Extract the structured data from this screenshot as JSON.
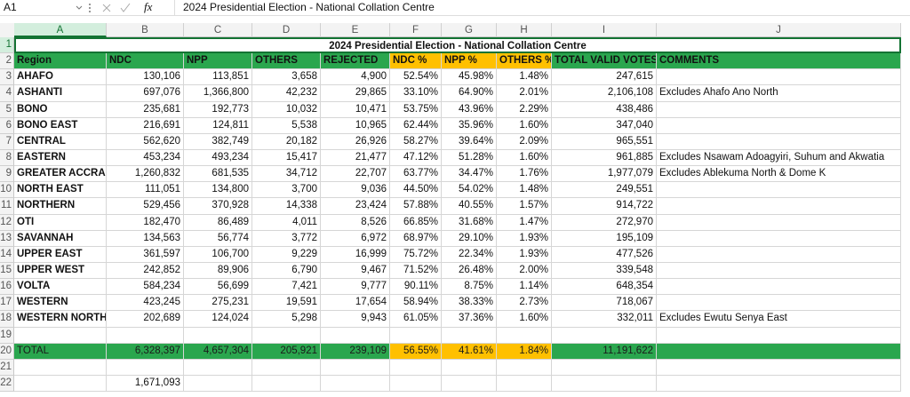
{
  "formula_bar": {
    "cell_ref": "A1",
    "function_label": "fx",
    "formula": "2024 Presidential Election - National Collation Centre"
  },
  "column_headers": [
    "A",
    "B",
    "C",
    "D",
    "E",
    "F",
    "G",
    "H",
    "I",
    "J"
  ],
  "rows": [
    {
      "number": "1",
      "cells": {
        "A": "2024 Presidential Election - National Collation Centre"
      }
    },
    {
      "number": "2",
      "cells": {
        "A": "Region",
        "B": "NDC",
        "C": "NPP",
        "D": "OTHERS",
        "E": "REJECTED",
        "F": "NDC %",
        "G": "NPP %",
        "H": "OTHERS %",
        "I": "TOTAL VALID VOTES",
        "J": "COMMENTS"
      }
    },
    {
      "number": "3",
      "cells": {
        "A": "AHAFO",
        "B": "130,106",
        "C": "113,851",
        "D": "3,658",
        "E": "4,900",
        "F": "52.54%",
        "G": "45.98%",
        "H": "1.48%",
        "I": "247,615"
      }
    },
    {
      "number": "4",
      "cells": {
        "A": "ASHANTI",
        "B": "697,076",
        "C": "1,366,800",
        "D": "42,232",
        "E": "29,865",
        "F": "33.10%",
        "G": "64.90%",
        "H": "2.01%",
        "I": "2,106,108",
        "J": "Excludes Ahafo Ano North"
      }
    },
    {
      "number": "5",
      "cells": {
        "A": "BONO",
        "B": "235,681",
        "C": "192,773",
        "D": "10,032",
        "E": "10,471",
        "F": "53.75%",
        "G": "43.96%",
        "H": "2.29%",
        "I": "438,486"
      }
    },
    {
      "number": "6",
      "cells": {
        "A": "BONO EAST",
        "B": "216,691",
        "C": "124,811",
        "D": "5,538",
        "E": "10,965",
        "F": "62.44%",
        "G": "35.96%",
        "H": "1.60%",
        "I": "347,040"
      }
    },
    {
      "number": "7",
      "cells": {
        "A": "CENTRAL",
        "B": "562,620",
        "C": "382,749",
        "D": "20,182",
        "E": "26,926",
        "F": "58.27%",
        "G": "39.64%",
        "H": "2.09%",
        "I": "965,551"
      }
    },
    {
      "number": "8",
      "cells": {
        "A": "EASTERN",
        "B": "453,234",
        "C": "493,234",
        "D": "15,417",
        "E": "21,477",
        "F": "47.12%",
        "G": "51.28%",
        "H": "1.60%",
        "I": "961,885",
        "J": "Excludes Nsawam Adoagyiri, Suhum and Akwatia"
      }
    },
    {
      "number": "9",
      "cells": {
        "A": "GREATER ACCRA",
        "B": "1,260,832",
        "C": "681,535",
        "D": "34,712",
        "E": "22,707",
        "F": "63.77%",
        "G": "34.47%",
        "H": "1.76%",
        "I": "1,977,079",
        "J": "Excludes Ablekuma North & Dome K"
      }
    },
    {
      "number": "10",
      "cells": {
        "A": "NORTH EAST",
        "B": "111,051",
        "C": "134,800",
        "D": "3,700",
        "E": "9,036",
        "F": "44.50%",
        "G": "54.02%",
        "H": "1.48%",
        "I": "249,551"
      }
    },
    {
      "number": "11",
      "cells": {
        "A": "NORTHERN",
        "B": "529,456",
        "C": "370,928",
        "D": "14,338",
        "E": "23,424",
        "F": "57.88%",
        "G": "40.55%",
        "H": "1.57%",
        "I": "914,722"
      }
    },
    {
      "number": "12",
      "cells": {
        "A": "OTI",
        "B": "182,470",
        "C": "86,489",
        "D": "4,011",
        "E": "8,526",
        "F": "66.85%",
        "G": "31.68%",
        "H": "1.47%",
        "I": "272,970"
      }
    },
    {
      "number": "13",
      "cells": {
        "A": "SAVANNAH",
        "B": "134,563",
        "C": "56,774",
        "D": "3,772",
        "E": "6,972",
        "F": "68.97%",
        "G": "29.10%",
        "H": "1.93%",
        "I": "195,109"
      }
    },
    {
      "number": "14",
      "cells": {
        "A": "UPPER EAST",
        "B": "361,597",
        "C": "106,700",
        "D": "9,229",
        "E": "16,999",
        "F": "75.72%",
        "G": "22.34%",
        "H": "1.93%",
        "I": "477,526"
      }
    },
    {
      "number": "15",
      "cells": {
        "A": "UPPER WEST",
        "B": "242,852",
        "C": "89,906",
        "D": "6,790",
        "E": "9,467",
        "F": "71.52%",
        "G": "26.48%",
        "H": "2.00%",
        "I": "339,548"
      }
    },
    {
      "number": "16",
      "cells": {
        "A": "VOLTA",
        "B": "584,234",
        "C": "56,699",
        "D": "7,421",
        "E": "9,777",
        "F": "90.11%",
        "G": "8.75%",
        "H": "1.14%",
        "I": "648,354"
      }
    },
    {
      "number": "17",
      "cells": {
        "A": "WESTERN",
        "B": "423,245",
        "C": "275,231",
        "D": "19,591",
        "E": "17,654",
        "F": "58.94%",
        "G": "38.33%",
        "H": "2.73%",
        "I": "718,067"
      }
    },
    {
      "number": "18",
      "cells": {
        "A": "WESTERN NORTH",
        "B": "202,689",
        "C": "124,024",
        "D": "5,298",
        "E": "9,943",
        "F": "61.05%",
        "G": "37.36%",
        "H": "1.60%",
        "I": "332,011",
        "J": "Excludes Ewutu Senya East"
      }
    },
    {
      "number": "19"
    },
    {
      "number": "20",
      "cells": {
        "A": "TOTAL",
        "B": "6,328,397",
        "C": "4,657,304",
        "D": "205,921",
        "E": "239,109",
        "F": "56.55%",
        "G": "41.61%",
        "H": "1.84%",
        "I": "11,191,622"
      }
    },
    {
      "number": "21"
    },
    {
      "number": "22",
      "cells": {
        "B": "1,671,093"
      }
    }
  ]
}
